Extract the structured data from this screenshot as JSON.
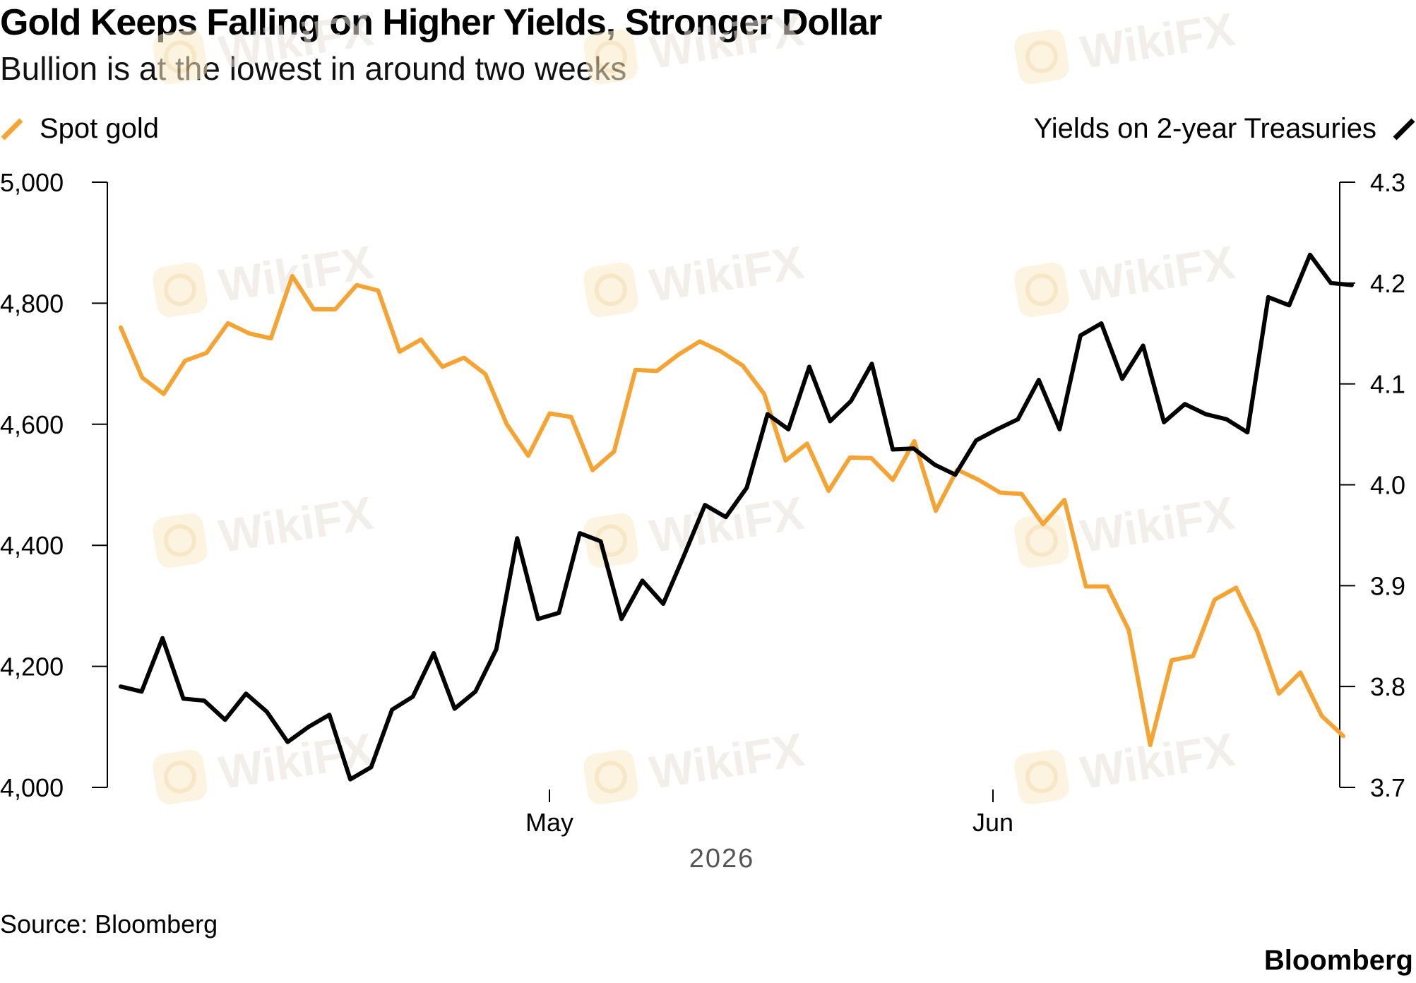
{
  "title": "Gold Keeps Falling on Higher Yields, Stronger Dollar",
  "subtitle": "Bullion is at the lowest in around two weeks",
  "source": "Source: Bloomberg",
  "brand": "Bloomberg",
  "watermark": "WikiFX",
  "colors": {
    "gold": "#F5A434",
    "yield": "#000000",
    "watermark": "#E8E2DC"
  },
  "chart_data": {
    "type": "line",
    "xlabel": "2026",
    "x_ticks": [
      "May",
      "Jun"
    ],
    "y_left": {
      "ylim": [
        4000,
        5000
      ],
      "ticks": [
        "4,000",
        "4,200",
        "4,400",
        "4,600",
        "4,800",
        "5,000"
      ]
    },
    "y_right": {
      "ylim": [
        3.7,
        4.3
      ],
      "ticks": [
        "3.7",
        "3.8",
        "3.9",
        "4.0",
        "4.1",
        "4.2",
        "4.3"
      ]
    },
    "legend_placement": "top (gold left, yields right)",
    "grid": false,
    "series": [
      {
        "name": "Spot gold",
        "axis": "left",
        "values": [
          4760,
          4677,
          4650,
          4705,
          4718,
          4767,
          4750,
          4742,
          4845,
          4790,
          4790,
          4830,
          4821,
          4720,
          4740,
          4695,
          4710,
          4683,
          4600,
          4548,
          4618,
          4612,
          4524,
          4555,
          4690,
          4688,
          4715,
          4737,
          4720,
          4697,
          4650,
          4540,
          4568,
          4490,
          4545,
          4544,
          4508,
          4572,
          4457,
          4525,
          4508,
          4487,
          4485,
          4435,
          4475,
          4332,
          4332,
          4260,
          4070,
          4210,
          4217,
          4310,
          4330,
          4257,
          4155,
          4190,
          4118,
          4085
        ]
      },
      {
        "name": "Yields on 2-year Treasuries",
        "axis": "right",
        "values": [
          3.8,
          3.795,
          3.848,
          3.788,
          3.786,
          3.767,
          3.793,
          3.775,
          3.745,
          3.76,
          3.772,
          3.708,
          3.72,
          3.777,
          3.79,
          3.833,
          3.778,
          3.795,
          3.837,
          3.947,
          3.867,
          3.873,
          3.952,
          3.944,
          3.867,
          3.905,
          3.882,
          3.93,
          3.98,
          3.968,
          3.997,
          4.07,
          4.055,
          4.117,
          4.063,
          4.083,
          4.12,
          4.035,
          4.036,
          4.02,
          4.01,
          4.044,
          4.055,
          4.065,
          4.104,
          4.055,
          4.148,
          4.16,
          4.105,
          4.138,
          4.062,
          4.08,
          4.07,
          4.065,
          4.052,
          4.186,
          4.178,
          4.228,
          4.2,
          4.198
        ]
      }
    ]
  }
}
